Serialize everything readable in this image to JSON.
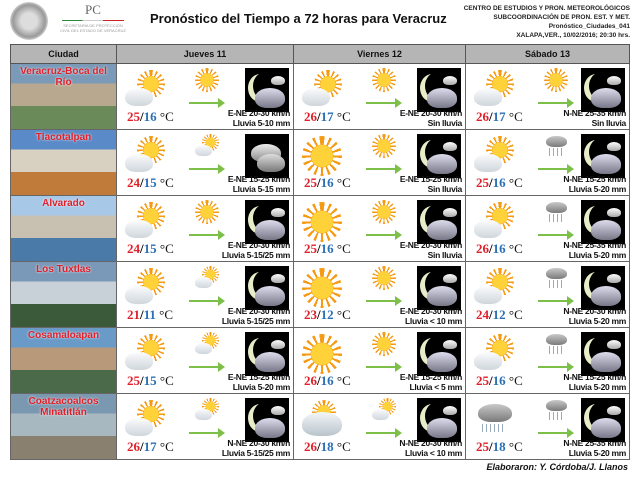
{
  "header": {
    "pc_logo": "PC",
    "pc_subtitle": "SECRETARÍA DE PROTECCIÓN CIVIL DEL ESTADO DE VERACRUZ",
    "title": "Pronóstico del Tiempo a 72 horas para Veracruz",
    "org_lines": [
      "CENTRO DE ESTUDIOS Y PRON. METEOROLÓGICOS",
      "SUBCOORDINACIÓN DE PRON.  EST. Y MET.",
      "Pronóstico_Ciudades_041",
      "XALAPA,VER., 10/02/2016; 20:30  hrs."
    ]
  },
  "columns": [
    "Ciudad",
    "Jueves 11",
    "Viernes 12",
    "Sábado 13"
  ],
  "temp_unit": "°C",
  "colors": {
    "max_temp": "#e0202a",
    "min_temp": "#2a6fb5",
    "header_bg": "#b5b5b5",
    "arrow": "#7cc04a"
  },
  "rows": [
    {
      "city": "Veracruz-Boca del Río",
      "photo": [
        "#7a9ab8",
        "#b8a890",
        "#6a8a5a"
      ],
      "days": [
        {
          "icons": [
            "partly-cloudy",
            "sunny",
            "night-partly-cloudy"
          ],
          "max": "25",
          "min": "16",
          "wind": "E-NE 20-30 km/h",
          "rain": "Lluvia 5-10 mm"
        },
        {
          "icons": [
            "partly-cloudy",
            "sunny",
            "night-partly-cloudy"
          ],
          "max": "26",
          "min": "17",
          "wind": "E-NE 20-30 km/h",
          "rain": "Sin lluvia"
        },
        {
          "icons": [
            "partly-cloudy",
            "sunny",
            "night-partly-cloudy"
          ],
          "max": "26",
          "min": "17",
          "wind": "N-NE 25-35 km/h",
          "rain": "Sin lluvia"
        }
      ]
    },
    {
      "city": "Tlacotalpan",
      "photo": [
        "#5a8ac8",
        "#d8d0c0",
        "#c07a3a"
      ],
      "days": [
        {
          "icons": [
            "partly-cloudy",
            "partly-cloudy",
            "night-cloudy"
          ],
          "max": "24",
          "min": "15",
          "wind": "E-NE 15-25 km/h",
          "rain": "Lluvia 5-15 mm"
        },
        {
          "icons": [
            "sunny",
            "sunny",
            "night-partly-cloudy"
          ],
          "max": "25",
          "min": "16",
          "wind": "E-NE 15-25 km/h",
          "rain": "Sin lluvia"
        },
        {
          "icons": [
            "partly-cloudy",
            "rain",
            "night-partly-cloudy"
          ],
          "max": "25",
          "min": "16",
          "wind": "N-NE 15-25 km/h",
          "rain": "Lluvia 5-20 mm"
        }
      ]
    },
    {
      "city": "Alvarado",
      "photo": [
        "#a8c8e8",
        "#c8c0b0",
        "#4a7aa8"
      ],
      "days": [
        {
          "icons": [
            "partly-cloudy",
            "sunny",
            "night-partly-cloudy"
          ],
          "max": "24",
          "min": "15",
          "wind": "E-NE 20-30 km/h",
          "rain": "Lluvia 5-15/25 mm"
        },
        {
          "icons": [
            "sunny",
            "sunny",
            "night-partly-cloudy"
          ],
          "max": "25",
          "min": "16",
          "wind": "E-NE 20-30 km/h",
          "rain": "Sin lluvia"
        },
        {
          "icons": [
            "partly-cloudy",
            "rain",
            "night-partly-cloudy"
          ],
          "max": "26",
          "min": "16",
          "wind": "N-NE 25-35 km/h",
          "rain": "Lluvia 5-20 mm"
        }
      ]
    },
    {
      "city": "Los Tuxtlas",
      "photo": [
        "#7a98b8",
        "#c8d0d8",
        "#3a5a3a"
      ],
      "days": [
        {
          "icons": [
            "partly-cloudy",
            "partly-cloudy",
            "night-partly-cloudy"
          ],
          "max": "21",
          "min": "11",
          "wind": "E-NE 20-30 km/h",
          "rain": "Lluvia 5-15/25 mm"
        },
        {
          "icons": [
            "sunny",
            "sunny",
            "night-partly-cloudy"
          ],
          "max": "23",
          "min": "12",
          "wind": "E-NE 20-30 km/h",
          "rain": "Lluvia < 10 mm"
        },
        {
          "icons": [
            "partly-cloudy",
            "rain",
            "night-partly-cloudy"
          ],
          "max": "24",
          "min": "12",
          "wind": "N-NE 20-30 km/h",
          "rain": "Lluvia 5-20 mm"
        }
      ]
    },
    {
      "city": "Cosamaloapan",
      "photo": [
        "#6a9ac8",
        "#b89a7a",
        "#4a6a4a"
      ],
      "days": [
        {
          "icons": [
            "partly-cloudy",
            "partly-cloudy",
            "night-partly-cloudy"
          ],
          "max": "25",
          "min": "15",
          "wind": "E-NE 15-25 km/h",
          "rain": "Lluvia 5-20 mm"
        },
        {
          "icons": [
            "sunny",
            "sunny",
            "night-partly-cloudy"
          ],
          "max": "26",
          "min": "16",
          "wind": "E-NE 15-25 km/h",
          "rain": "Lluvia < 5 mm"
        },
        {
          "icons": [
            "partly-cloudy",
            "rain",
            "night-partly-cloudy"
          ],
          "max": "25",
          "min": "16",
          "wind": "N-NE 15-25 km/h",
          "rain": "Lluvia 5-20 mm"
        }
      ]
    },
    {
      "city": "Coatzacoalcos Minatitlán",
      "photo": [
        "#7a98b0",
        "#a8b8c0",
        "#8a8070"
      ],
      "days": [
        {
          "icons": [
            "partly-cloudy",
            "partly-cloudy",
            "night-partly-cloudy"
          ],
          "max": "26",
          "min": "17",
          "wind": "N-NE 20-30 km/h",
          "rain": "Lluvia 5-15/25 mm"
        },
        {
          "icons": [
            "cloudy-sun",
            "partly-cloudy",
            "night-partly-cloudy"
          ],
          "max": "26",
          "min": "18",
          "wind": "N-NE 20-30 km/h",
          "rain": "Lluvia < 10 mm"
        },
        {
          "icons": [
            "rain",
            "rain",
            "night-partly-cloudy"
          ],
          "max": "25",
          "min": "18",
          "wind": "N-NE 25-35 km/h",
          "rain": "Lluvia 5-20 mm"
        }
      ]
    }
  ],
  "footer": "Elaboraron: Y. Córdoba/J. Llanos"
}
